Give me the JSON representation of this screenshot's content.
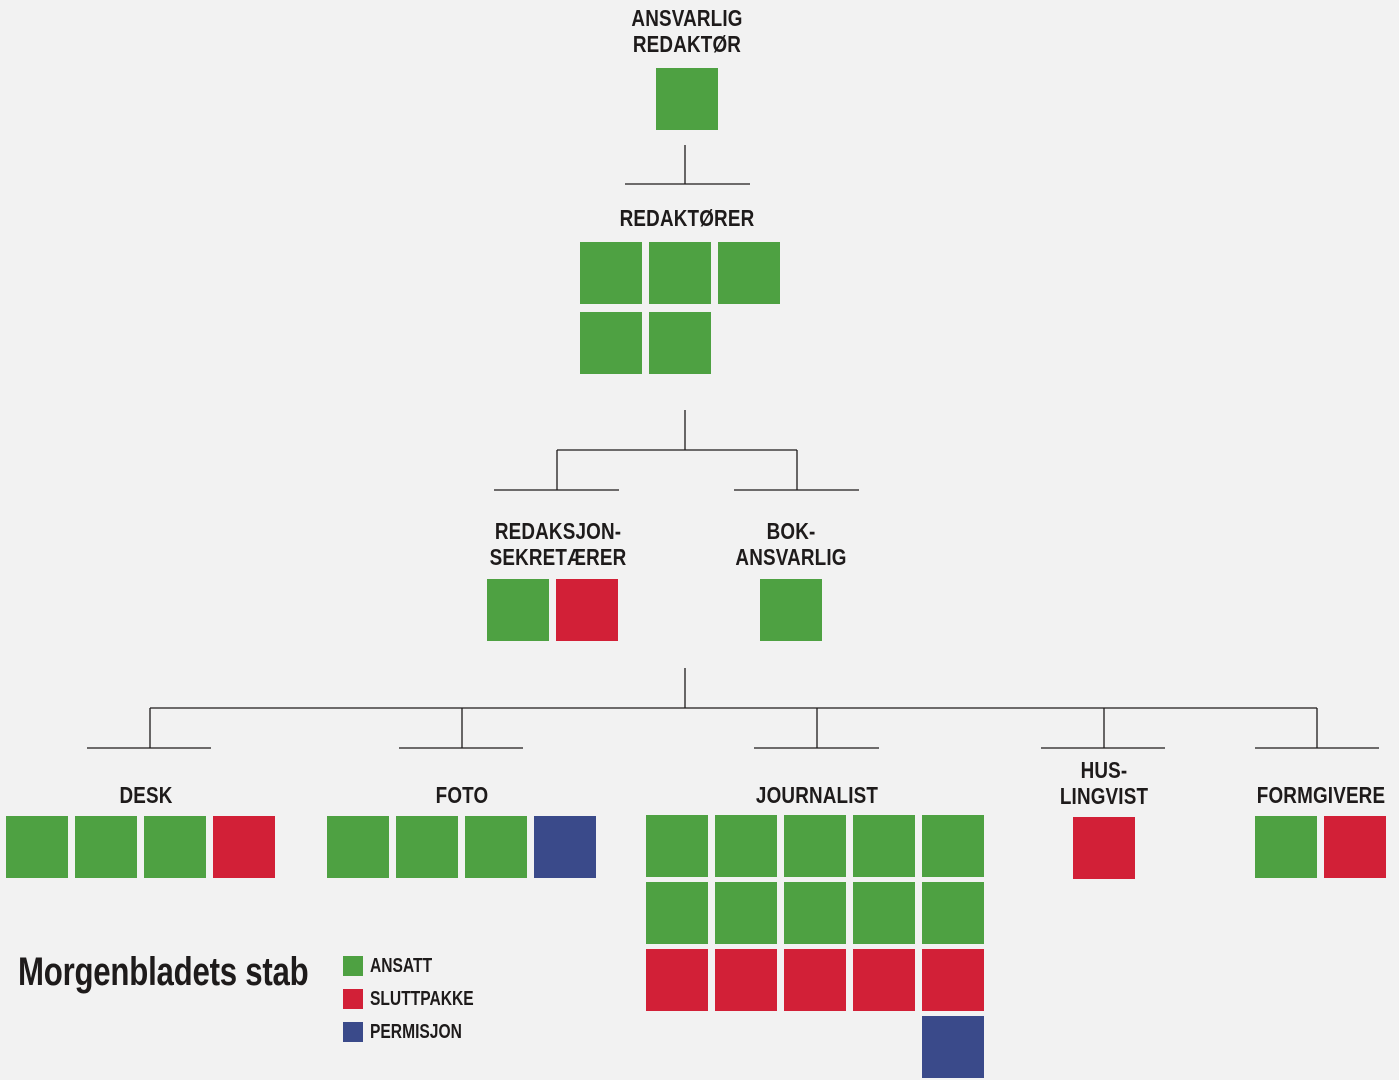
{
  "title": "Morgenbladets stab",
  "colors": {
    "ansatt": "#4ea142",
    "sluttpakke": "#d22037",
    "permisjon": "#3a4a8a",
    "line": "#1e1b1b"
  },
  "legend": [
    {
      "status": "ansatt",
      "label": "ANSATT"
    },
    {
      "status": "sluttpakke",
      "label": "SLUTTPAKKE"
    },
    {
      "status": "permisjon",
      "label": "PERMISJON"
    }
  ],
  "groups": [
    {
      "id": "ansvarlig-redaktor",
      "label": [
        "ANSVARLIG",
        "REDAKTØR"
      ],
      "staff": [
        "ansatt"
      ]
    },
    {
      "id": "redaktorer",
      "label": [
        "REDAKTØRER"
      ],
      "staff": [
        "ansatt",
        "ansatt",
        "ansatt",
        "ansatt",
        "ansatt"
      ]
    },
    {
      "id": "redaksjonssekretaerer",
      "label": [
        "REDAKSJON-",
        "SEKRETÆRER"
      ],
      "staff": [
        "ansatt",
        "sluttpakke"
      ]
    },
    {
      "id": "bokansvarlig",
      "label": [
        "BOK-",
        "ANSVARLIG"
      ],
      "staff": [
        "ansatt"
      ]
    },
    {
      "id": "desk",
      "label": [
        "DESK"
      ],
      "staff": [
        "ansatt",
        "ansatt",
        "ansatt",
        "sluttpakke"
      ]
    },
    {
      "id": "foto",
      "label": [
        "FOTO"
      ],
      "staff": [
        "ansatt",
        "ansatt",
        "ansatt",
        "permisjon"
      ]
    },
    {
      "id": "journalist",
      "label": [
        "JOURNALIST"
      ],
      "staff": [
        "ansatt",
        "ansatt",
        "ansatt",
        "ansatt",
        "ansatt",
        "ansatt",
        "ansatt",
        "ansatt",
        "ansatt",
        "ansatt",
        "sluttpakke",
        "sluttpakke",
        "sluttpakke",
        "sluttpakke",
        "sluttpakke",
        "permisjon"
      ]
    },
    {
      "id": "huslingvist",
      "label": [
        "HUS-",
        "LINGVIST"
      ],
      "staff": [
        "sluttpakke"
      ]
    },
    {
      "id": "formgivere",
      "label": [
        "FORMGIVERE"
      ],
      "staff": [
        "ansatt",
        "sluttpakke"
      ]
    }
  ]
}
